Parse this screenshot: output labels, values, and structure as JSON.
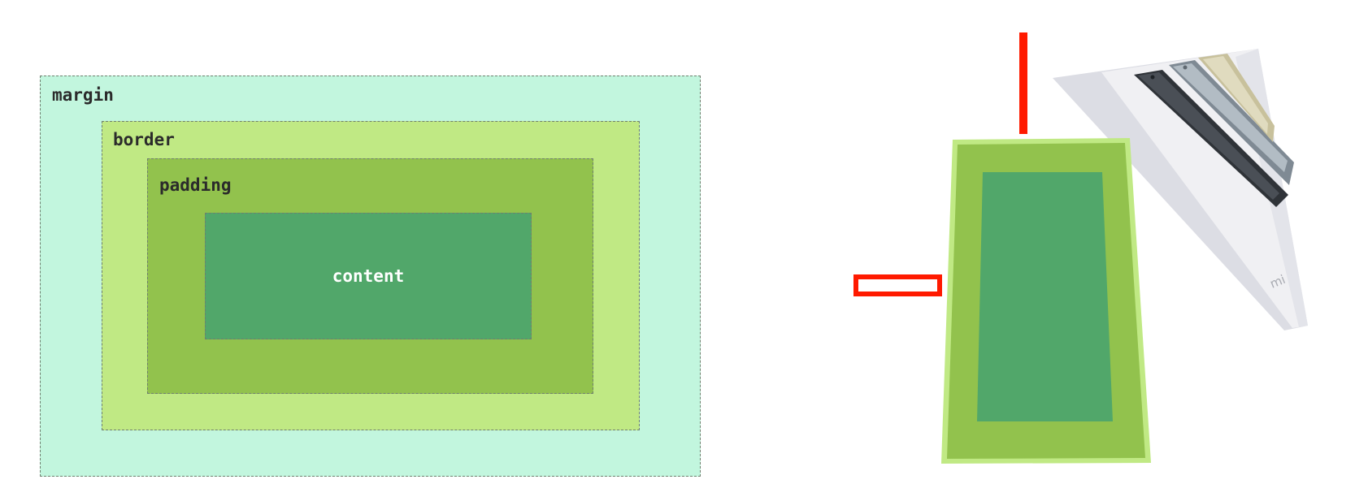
{
  "box_model": {
    "margin_label": "margin",
    "border_label": "border",
    "padding_label": "padding",
    "content_label": "content"
  },
  "colors": {
    "margin": "#c2f6de",
    "border": "#c0e984",
    "padding": "#92c24d",
    "content": "#51a76a",
    "accent_red": "#ff1a00"
  },
  "phone_illustration": {
    "logo_text": "mi"
  }
}
